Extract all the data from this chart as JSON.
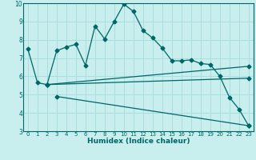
{
  "xlabel": "Humidex (Indice chaleur)",
  "bg_color": "#c8eeee",
  "line_color": "#006666",
  "grid_color": "#aadddd",
  "xlim": [
    -0.5,
    23.5
  ],
  "ylim": [
    3,
    10
  ],
  "xticks": [
    0,
    1,
    2,
    3,
    4,
    5,
    6,
    7,
    8,
    9,
    10,
    11,
    12,
    13,
    14,
    15,
    16,
    17,
    18,
    19,
    20,
    21,
    22,
    23
  ],
  "yticks": [
    3,
    4,
    5,
    6,
    7,
    8,
    9,
    10
  ],
  "line1_x": [
    0,
    1,
    2,
    3,
    4,
    5,
    6,
    7,
    8,
    9,
    10,
    11,
    12,
    13,
    14,
    15,
    16,
    17,
    18,
    19,
    20,
    21,
    22,
    23
  ],
  "line1_y": [
    7.5,
    5.65,
    5.55,
    7.4,
    7.6,
    7.75,
    6.6,
    8.75,
    8.05,
    9.0,
    9.95,
    9.55,
    8.5,
    8.1,
    7.55,
    6.85,
    6.85,
    6.9,
    6.7,
    6.65,
    6.0,
    4.85,
    4.2,
    3.3
  ],
  "line2_x": [
    2,
    23
  ],
  "line2_y": [
    5.55,
    6.55
  ],
  "line3_x": [
    2,
    23
  ],
  "line3_y": [
    5.55,
    5.9
  ],
  "line4_x": [
    3,
    23
  ],
  "line4_y": [
    4.9,
    3.3
  ],
  "marker": "D",
  "markersize": 2.5,
  "linewidth": 0.9,
  "tick_fontsize": 5.0,
  "xlabel_fontsize": 6.5
}
